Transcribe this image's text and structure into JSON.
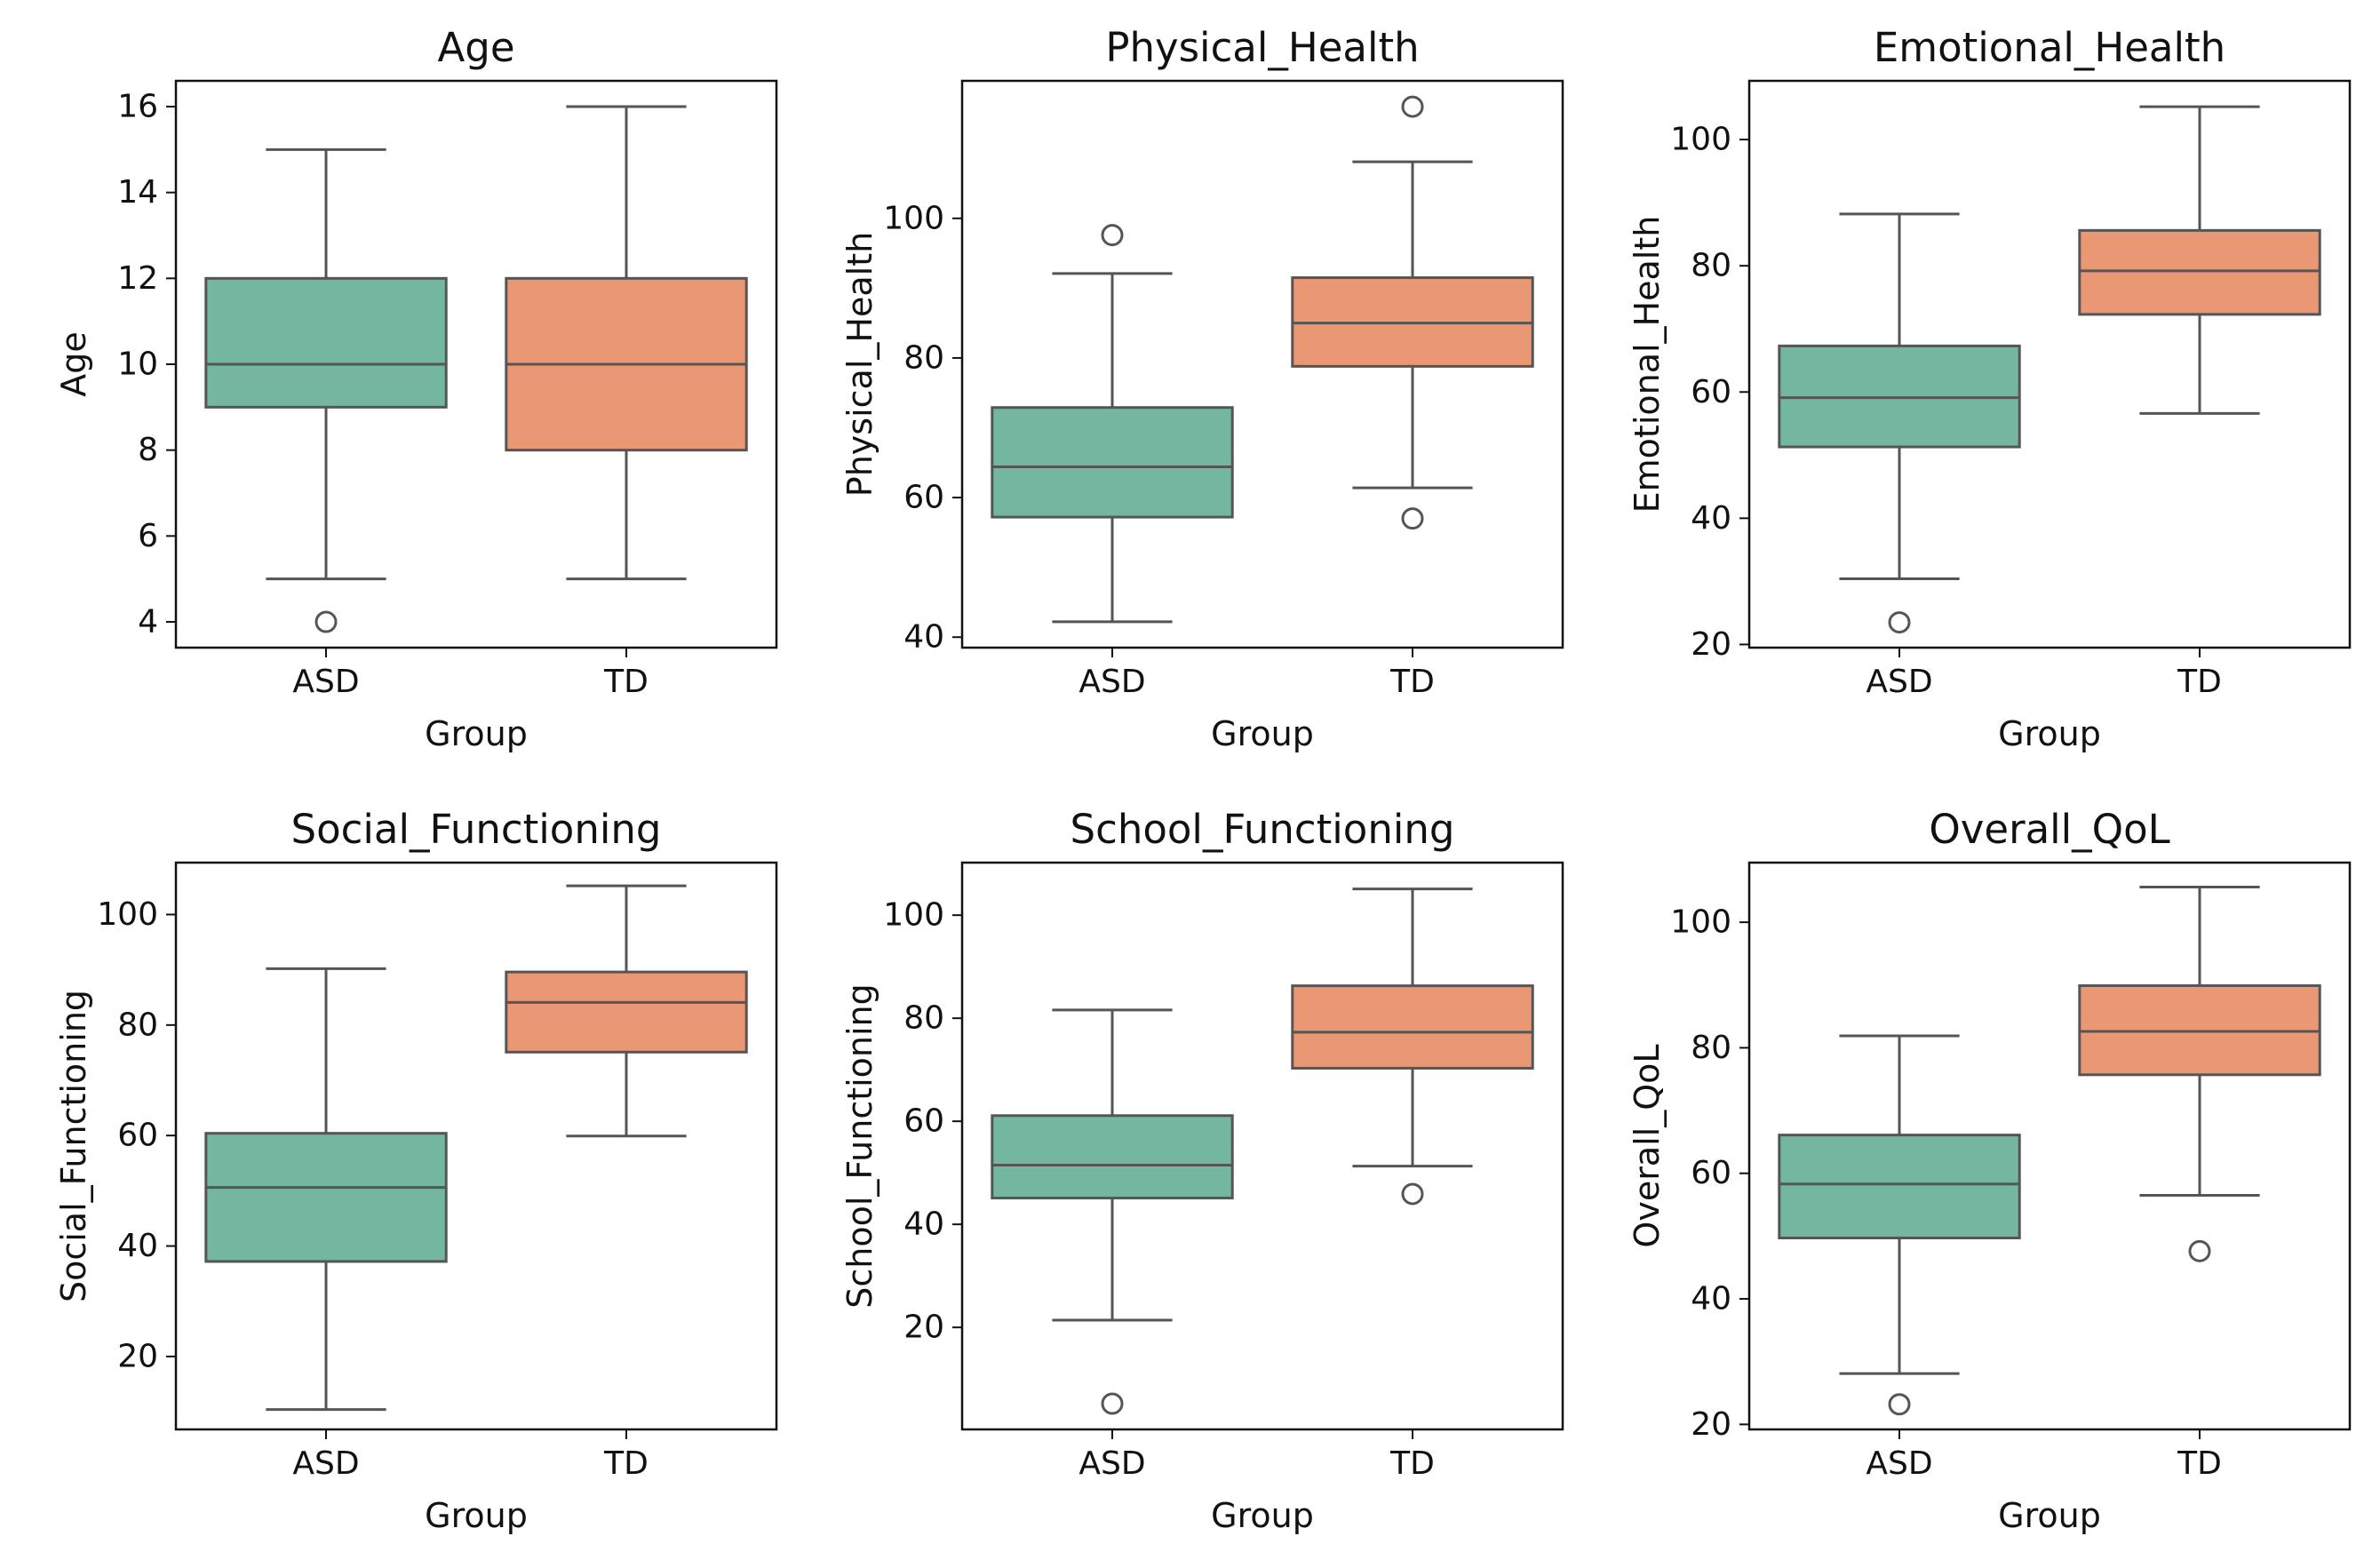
{
  "colors": {
    "ASD": "#73b7a1",
    "TD": "#ea9774",
    "line": "#555555",
    "frame": "#111111"
  },
  "chart_data": [
    {
      "type": "box",
      "title": "Age",
      "xlabel": "Group",
      "ylabel": "Age",
      "categories": [
        "ASD",
        "TD"
      ],
      "ylim": [
        3.4,
        16.6
      ],
      "yticks": [
        4,
        6,
        8,
        10,
        12,
        14,
        16
      ],
      "boxes": [
        {
          "group": "ASD",
          "whisker_low": 5,
          "q1": 9,
          "median": 10,
          "q3": 12,
          "whisker_high": 15,
          "outliers": [
            4
          ]
        },
        {
          "group": "TD",
          "whisker_low": 5,
          "q1": 8,
          "median": 10,
          "q3": 12,
          "whisker_high": 16,
          "outliers": []
        }
      ]
    },
    {
      "type": "box",
      "title": "Physical_Health",
      "xlabel": "Group",
      "ylabel": "Physical_Health",
      "categories": [
        "ASD",
        "TD"
      ],
      "ylim": [
        38.5,
        119.7
      ],
      "yticks": [
        40,
        60,
        80,
        100
      ],
      "boxes": [
        {
          "group": "ASD",
          "whisker_low": 42.2,
          "q1": 57.2,
          "median": 64.4,
          "q3": 72.9,
          "whisker_high": 92.1,
          "outliers": [
            97.6
          ]
        },
        {
          "group": "TD",
          "whisker_low": 61.4,
          "q1": 78.8,
          "median": 85.0,
          "q3": 91.5,
          "whisker_high": 108.1,
          "outliers": [
            57.0,
            116.0
          ]
        }
      ]
    },
    {
      "type": "box",
      "title": "Emotional_Health",
      "xlabel": "Group",
      "ylabel": "Emotional_Health",
      "categories": [
        "ASD",
        "TD"
      ],
      "ylim": [
        19.5,
        109.3
      ],
      "yticks": [
        20,
        40,
        60,
        80,
        100
      ],
      "boxes": [
        {
          "group": "ASD",
          "whisker_low": 30.4,
          "q1": 51.3,
          "median": 59.1,
          "q3": 67.3,
          "whisker_high": 88.2,
          "outliers": [
            23.5
          ]
        },
        {
          "group": "TD",
          "whisker_low": 56.6,
          "q1": 72.3,
          "median": 79.2,
          "q3": 85.6,
          "whisker_high": 105.2,
          "outliers": []
        }
      ]
    },
    {
      "type": "box",
      "title": "Social_Functioning",
      "xlabel": "Group",
      "ylabel": "Social_Functioning",
      "categories": [
        "ASD",
        "TD"
      ],
      "ylim": [
        6.8,
        109.4
      ],
      "yticks": [
        20,
        40,
        60,
        80,
        100
      ],
      "boxes": [
        {
          "group": "ASD",
          "whisker_low": 10.4,
          "q1": 37.2,
          "median": 50.6,
          "q3": 60.4,
          "whisker_high": 90.2,
          "outliers": []
        },
        {
          "group": "TD",
          "whisker_low": 59.9,
          "q1": 75.1,
          "median": 84.1,
          "q3": 89.6,
          "whisker_high": 105.2,
          "outliers": []
        }
      ]
    },
    {
      "type": "box",
      "title": "School_Functioning",
      "xlabel": "Group",
      "ylabel": "School_Functioning",
      "categories": [
        "ASD",
        "TD"
      ],
      "ylim": [
        0.2,
        110.2
      ],
      "yticks": [
        20,
        40,
        60,
        80,
        100
      ],
      "boxes": [
        {
          "group": "ASD",
          "whisker_low": 21.4,
          "q1": 45.1,
          "median": 51.5,
          "q3": 61.1,
          "whisker_high": 81.6,
          "outliers": [
            5.2
          ]
        },
        {
          "group": "TD",
          "whisker_low": 51.3,
          "q1": 70.3,
          "median": 77.3,
          "q3": 86.3,
          "whisker_high": 105.1,
          "outliers": [
            45.9
          ]
        }
      ]
    },
    {
      "type": "box",
      "title": "Overall_QoL",
      "xlabel": "Group",
      "ylabel": "Overall_QoL",
      "categories": [
        "ASD",
        "TD"
      ],
      "ylim": [
        19.2,
        109.5
      ],
      "yticks": [
        20,
        40,
        60,
        80,
        100
      ],
      "boxes": [
        {
          "group": "ASD",
          "whisker_low": 28.1,
          "q1": 49.7,
          "median": 58.3,
          "q3": 66.1,
          "whisker_high": 81.9,
          "outliers": [
            23.2
          ]
        },
        {
          "group": "TD",
          "whisker_low": 56.5,
          "q1": 75.7,
          "median": 82.6,
          "q3": 89.9,
          "whisker_high": 105.6,
          "outliers": [
            47.6
          ]
        }
      ]
    }
  ]
}
